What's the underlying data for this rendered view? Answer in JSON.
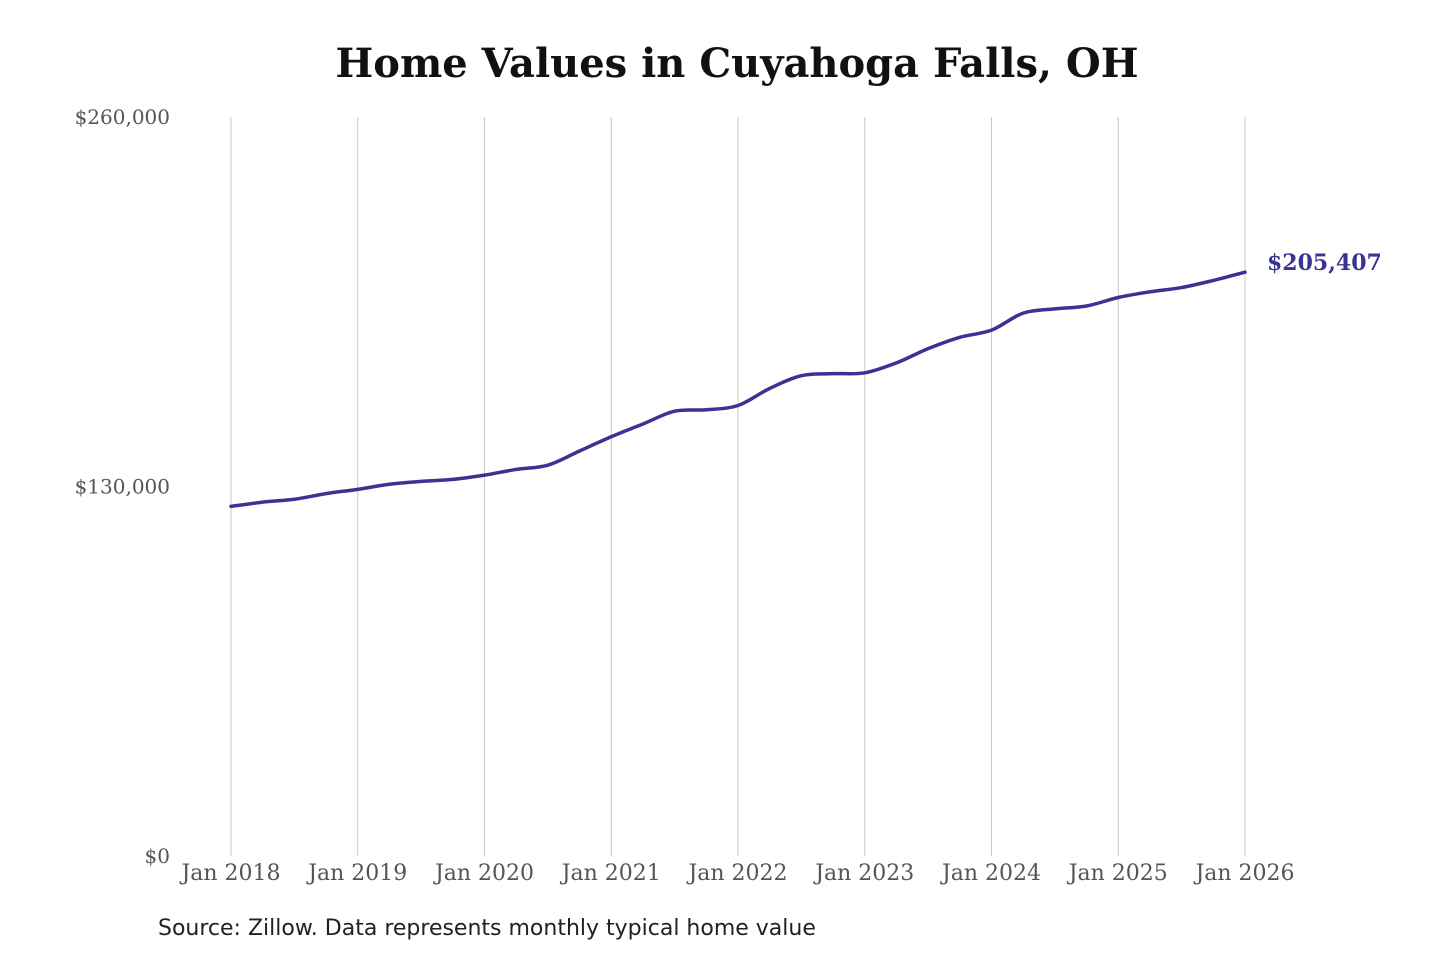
{
  "chart_data": {
    "type": "line",
    "title": "Home Values in Cuyahoga Falls, OH",
    "xlabel": "",
    "ylabel": "",
    "ylim": [
      0,
      260000
    ],
    "y_ticks": [
      "$0",
      "$130,000",
      "$260,000"
    ],
    "y_tick_values": [
      0,
      130000,
      260000
    ],
    "x_tick_labels": [
      "Jan 2018",
      "Jan 2019",
      "Jan 2020",
      "Jan 2021",
      "Jan 2022",
      "Jan 2023",
      "Jan 2024",
      "Jan 2025",
      "Jan 2026"
    ],
    "x_tick_values": [
      2018,
      2019,
      2020,
      2021,
      2022,
      2023,
      2024,
      2025,
      2026
    ],
    "xlim": [
      2018,
      2026
    ],
    "grid": "vertical",
    "series": [
      {
        "color": "#3b3394",
        "x": [
          2018.0,
          2018.25,
          2018.5,
          2018.75,
          2019.0,
          2019.25,
          2019.5,
          2019.75,
          2020.0,
          2020.25,
          2020.5,
          2020.75,
          2021.0,
          2021.25,
          2021.5,
          2021.75,
          2022.0,
          2022.25,
          2022.5,
          2022.75,
          2023.0,
          2023.25,
          2023.5,
          2023.75,
          2024.0,
          2024.25,
          2024.5,
          2024.75,
          2025.0,
          2025.25,
          2025.5,
          2025.75,
          2026.0
        ],
        "values": [
          123000,
          124500,
          125500,
          127500,
          129000,
          130800,
          131800,
          132500,
          134000,
          136000,
          137500,
          142500,
          147500,
          152000,
          156500,
          157000,
          158500,
          164500,
          169000,
          169700,
          170000,
          173500,
          178500,
          182500,
          185000,
          191000,
          192500,
          193500,
          196500,
          198500,
          200000,
          202500,
          205407
        ]
      }
    ],
    "end_label": "$205,407"
  },
  "footer": {
    "source": "Source: Zillow. Data represents monthly typical home value"
  }
}
